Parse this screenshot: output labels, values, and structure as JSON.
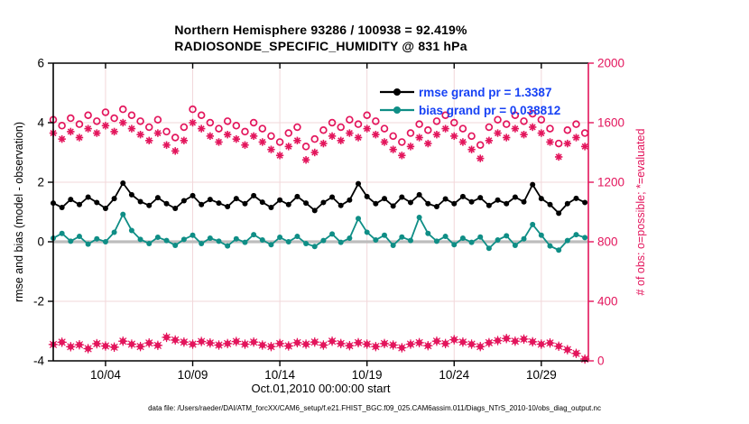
{
  "title": {
    "line1": "Northern Hemisphere 93286 / 100938 = 92.419%",
    "line2": "RADIOSONDE_SPECIFIC_HUMIDITY @ 831 hPa"
  },
  "footer_text": "data file: /Users/raeder/DAI/ATM_forcXX/CAM6_setup/f.e21.FHIST_BGC.f09_025.CAM6assim.011/Diags_NTrS_2010-10/obs_diag_output.nc",
  "colors": {
    "obs": "#e3155c",
    "rmse": "#000000",
    "bias": "#0f8e86",
    "legend_text": "#1742f5",
    "grid": "#f2d7da",
    "zero_line": "#bdbdbd",
    "axis": "#000000"
  },
  "legend": {
    "rmse_label": "rmse grand pr = 1.3387",
    "bias_label": "bias grand pr = 0.038812"
  },
  "chart_data": {
    "type": "line",
    "title": "Northern Hemisphere 93286 / 100938 = 92.419%",
    "subtitle": "RADIOSONDE_SPECIFIC_HUMIDITY @ 831 hPa",
    "xlabel": "Oct.01,2010 00:00:00 start",
    "ylabel_left": "rmse and bias (model - observation)",
    "ylabel_right": "# of obs: o=possible; *=evaluated",
    "ylim_left": [
      -4,
      6
    ],
    "yticks_left": [
      -4,
      -2,
      0,
      2,
      4,
      6
    ],
    "ylim_right": [
      0,
      2000
    ],
    "yticks_right": [
      0,
      400,
      800,
      1200,
      1600,
      2000
    ],
    "x_range_days": [
      0,
      30.7
    ],
    "x_tick_days": [
      3,
      8,
      13,
      18,
      23,
      28
    ],
    "x_tick_labels": [
      "10/04",
      "10/09",
      "10/14",
      "10/19",
      "10/24",
      "10/29"
    ],
    "x_start_day": 0,
    "x_step_days": 0.5,
    "grid": true,
    "legend_position": "top-right-inside",
    "series": [
      {
        "name": "rmse",
        "label": "rmse grand pr = 1.3387",
        "axis": "left",
        "marker": "dot",
        "line": true,
        "color_key": "rmse",
        "values": [
          1.3,
          1.15,
          1.42,
          1.25,
          1.5,
          1.32,
          1.12,
          1.45,
          1.97,
          1.58,
          1.35,
          1.22,
          1.48,
          1.28,
          1.12,
          1.38,
          1.55,
          1.25,
          1.42,
          1.3,
          1.18,
          1.45,
          1.28,
          1.55,
          1.33,
          1.15,
          1.4,
          1.25,
          1.52,
          1.3,
          1.05,
          1.32,
          1.5,
          1.22,
          1.4,
          1.95,
          1.52,
          1.28,
          1.45,
          1.2,
          1.5,
          1.32,
          1.58,
          1.28,
          1.18,
          1.44,
          1.28,
          1.52,
          1.34,
          1.48,
          1.22,
          1.4,
          1.28,
          1.5,
          1.34,
          1.92,
          1.45,
          1.25,
          0.96,
          1.28,
          1.46,
          1.32
        ]
      },
      {
        "name": "bias",
        "label": "bias grand pr = 0.038812",
        "axis": "left",
        "marker": "dot",
        "line": true,
        "color_key": "bias",
        "values": [
          0.12,
          0.28,
          0.02,
          0.18,
          -0.08,
          0.1,
          0.0,
          0.32,
          0.92,
          0.38,
          0.08,
          -0.06,
          0.15,
          0.04,
          -0.12,
          0.08,
          0.22,
          -0.06,
          0.12,
          0.02,
          -0.14,
          0.1,
          -0.02,
          0.24,
          0.06,
          -0.1,
          0.15,
          0.0,
          0.18,
          -0.06,
          -0.16,
          0.04,
          0.26,
          -0.02,
          0.12,
          0.78,
          0.32,
          0.06,
          0.22,
          -0.12,
          0.16,
          0.04,
          0.82,
          0.28,
          0.02,
          0.18,
          -0.1,
          0.12,
          -0.02,
          0.16,
          -0.22,
          0.06,
          0.2,
          -0.12,
          0.1,
          0.58,
          0.22,
          -0.14,
          -0.28,
          0.04,
          0.24,
          0.14
        ]
      },
      {
        "name": "possible",
        "axis": "right",
        "marker": "circle",
        "line": false,
        "color_key": "obs",
        "values": [
          1620,
          1580,
          1630,
          1590,
          1650,
          1610,
          1670,
          1630,
          1690,
          1650,
          1610,
          1570,
          1620,
          1540,
          1500,
          1570,
          1690,
          1650,
          1600,
          1560,
          1610,
          1580,
          1540,
          1600,
          1560,
          1510,
          1470,
          1530,
          1570,
          1440,
          1490,
          1550,
          1600,
          1570,
          1620,
          1590,
          1650,
          1610,
          1560,
          1510,
          1470,
          1530,
          1590,
          1550,
          1610,
          1650,
          1600,
          1560,
          1510,
          1450,
          1570,
          1620,
          1590,
          1650,
          1610,
          1660,
          1620,
          1560,
          1460,
          1550,
          1590,
          1530
        ]
      },
      {
        "name": "evaluated",
        "axis": "right",
        "marker": "asterisk",
        "line": false,
        "color_key": "obs",
        "values": [
          1530,
          1490,
          1540,
          1500,
          1560,
          1530,
          1580,
          1540,
          1600,
          1560,
          1520,
          1480,
          1530,
          1450,
          1410,
          1480,
          1600,
          1560,
          1510,
          1470,
          1520,
          1490,
          1450,
          1510,
          1470,
          1420,
          1380,
          1440,
          1480,
          1350,
          1400,
          1460,
          1510,
          1480,
          1530,
          1500,
          1560,
          1520,
          1470,
          1420,
          1380,
          1440,
          1500,
          1460,
          1520,
          1560,
          1510,
          1470,
          1420,
          1360,
          1480,
          1530,
          1500,
          1560,
          1520,
          1570,
          1530,
          1470,
          1370,
          1460,
          1500,
          1440
        ]
      },
      {
        "name": "bottom_count",
        "axis": "right",
        "marker": "diamond-star",
        "line": false,
        "color_key": "obs",
        "values": [
          110,
          125,
          95,
          108,
          82,
          115,
          100,
          92,
          132,
          112,
          96,
          120,
          104,
          158,
          140,
          126,
          112,
          130,
          120,
          106,
          116,
          130,
          112,
          126,
          106,
          96,
          116,
          100,
          122,
          112,
          126,
          106,
          132,
          116,
          102,
          122,
          112,
          96,
          116,
          106,
          88,
          112,
          122,
          102,
          132,
          116,
          142,
          126,
          112,
          96,
          122,
          136,
          150,
          132,
          146,
          128,
          112,
          120,
          98,
          75,
          50,
          12
        ]
      }
    ]
  }
}
